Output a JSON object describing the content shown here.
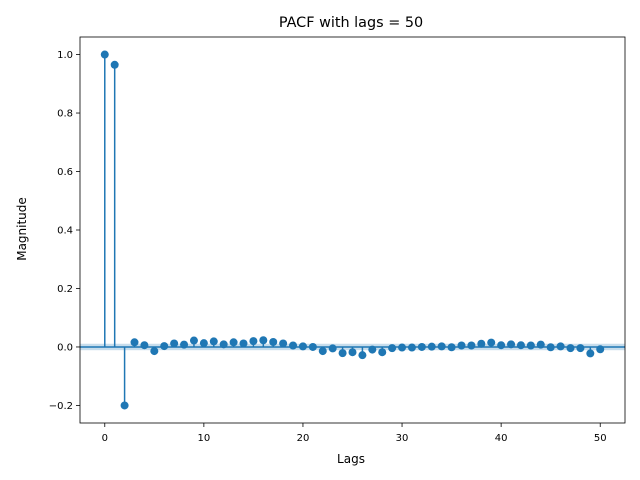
{
  "chart_data": {
    "type": "stem",
    "title": "PACF with lags = 50",
    "xlabel": "Lags",
    "ylabel": "Magnitude",
    "xlim": [
      -2.5,
      52.5
    ],
    "ylim": [
      -0.26,
      1.06
    ],
    "xticks": [
      0,
      10,
      20,
      30,
      40,
      50
    ],
    "yticks": [
      -0.2,
      0.0,
      0.2,
      0.4,
      0.6,
      0.8,
      1.0
    ],
    "xtick_labels": [
      "0",
      "10",
      "20",
      "30",
      "40",
      "50"
    ],
    "ytick_labels": [
      "−0.2",
      "0.0",
      "0.2",
      "0.4",
      "0.6",
      "0.8",
      "1.0"
    ],
    "series_color": "#1f77b4",
    "confidence_band": [
      -0.011,
      0.011
    ],
    "x": [
      0,
      1,
      2,
      3,
      4,
      5,
      6,
      7,
      8,
      9,
      10,
      11,
      12,
      13,
      14,
      15,
      16,
      17,
      18,
      19,
      20,
      21,
      22,
      23,
      24,
      25,
      26,
      27,
      28,
      29,
      30,
      31,
      32,
      33,
      34,
      35,
      36,
      37,
      38,
      39,
      40,
      41,
      42,
      43,
      44,
      45,
      46,
      47,
      48,
      49,
      50
    ],
    "values": [
      1.0,
      0.965,
      -0.2,
      0.016,
      0.006,
      -0.014,
      0.003,
      0.012,
      0.008,
      0.022,
      0.013,
      0.019,
      0.009,
      0.016,
      0.012,
      0.02,
      0.023,
      0.017,
      0.012,
      0.005,
      0.002,
      0.0,
      -0.014,
      -0.005,
      -0.021,
      -0.018,
      -0.028,
      -0.009,
      -0.018,
      -0.004,
      -0.002,
      -0.002,
      0.0,
      0.001,
      0.002,
      -0.001,
      0.005,
      0.005,
      0.011,
      0.015,
      0.006,
      0.009,
      0.006,
      0.005,
      0.008,
      -0.001,
      0.002,
      -0.004,
      -0.004,
      -0.022,
      -0.008
    ]
  }
}
